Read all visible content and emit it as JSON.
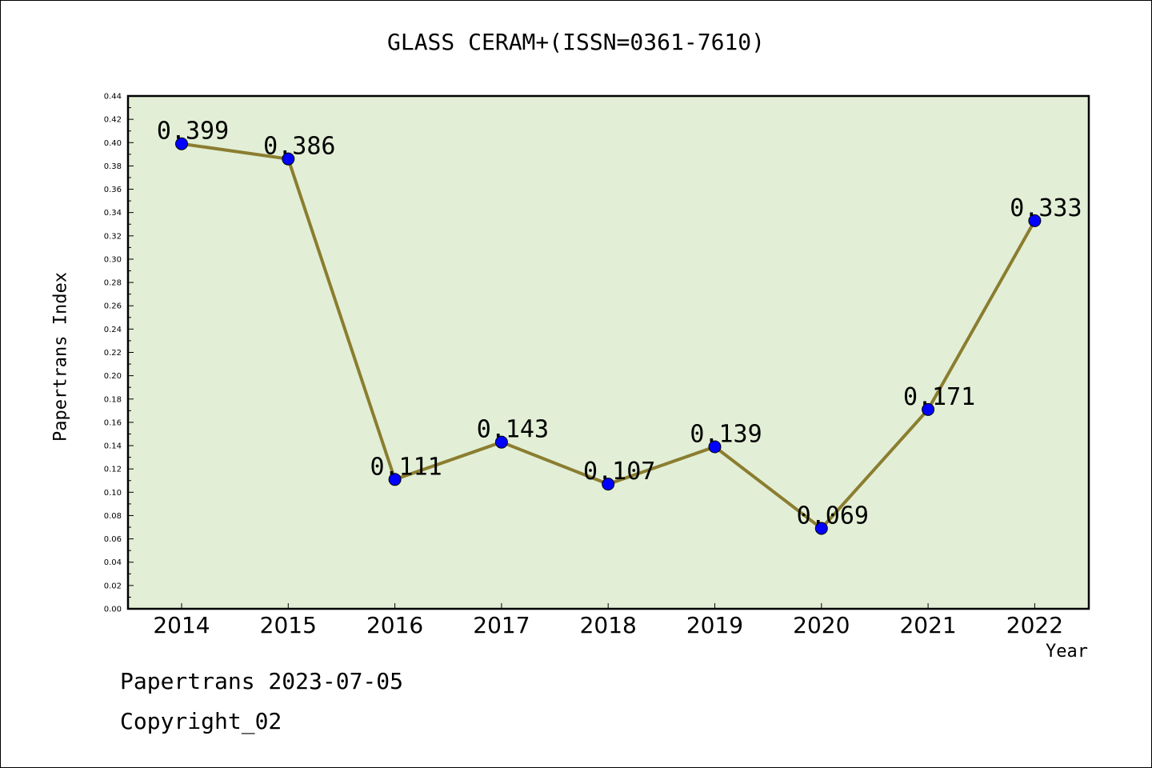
{
  "chart_data": {
    "type": "line",
    "title": "GLASS CERAM+(ISSN=0361-7610)",
    "xlabel": "Year",
    "ylabel": "Papertrans Index",
    "categories": [
      "2014",
      "2015",
      "2016",
      "2017",
      "2018",
      "2019",
      "2020",
      "2021",
      "2022"
    ],
    "series": [
      {
        "values": [
          0.399,
          0.386,
          0.111,
          0.143,
          0.107,
          0.139,
          0.069,
          0.171,
          0.333
        ],
        "data_labels": [
          "0.399",
          "0.386",
          "0.111",
          "0.143",
          "0.107",
          "0.139",
          "0.069",
          "0.171",
          "0.333"
        ]
      }
    ],
    "ylim": [
      0,
      0.44
    ],
    "ytick_labels": [
      "0.00",
      "0.02",
      "0.04",
      "0.06",
      "0.08",
      "0.10",
      "0.12",
      "0.14",
      "0.16",
      "0.18",
      "0.20",
      "0.22",
      "0.24",
      "0.26",
      "0.28",
      "0.30",
      "0.32",
      "0.34",
      "0.36",
      "0.38",
      "0.40",
      "0.42",
      "0.44"
    ],
    "grid": false,
    "colors": {
      "plot_background": "#e2efd6",
      "line": "#8b7d30",
      "marker": "#0000ff"
    }
  },
  "footer": {
    "date_line": "Papertrans 2023-07-05",
    "copyright_line": "Copyright_02"
  }
}
